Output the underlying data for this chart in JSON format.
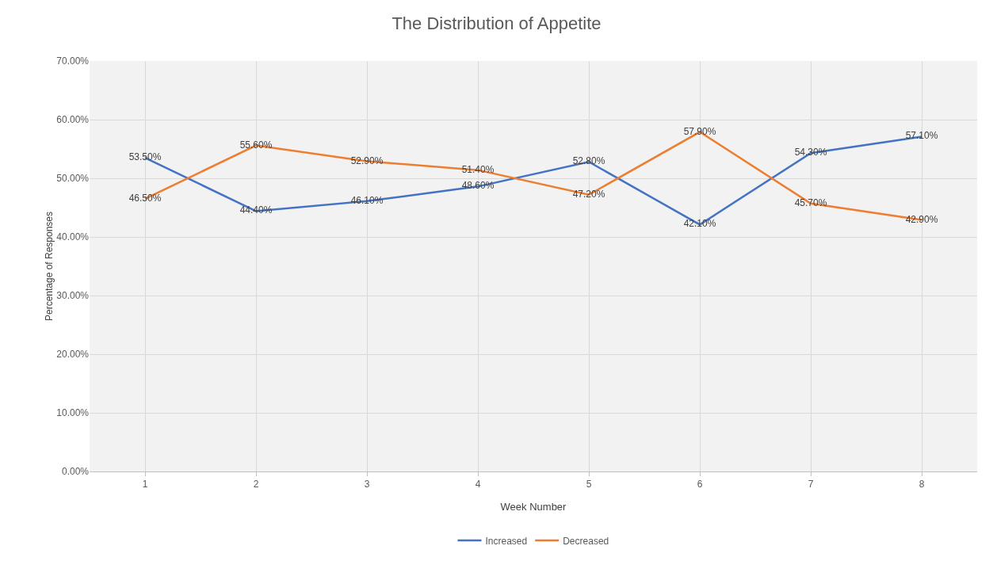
{
  "chart_data": {
    "type": "line",
    "title": "The Distribution of Appetite",
    "xlabel": "Week Number",
    "ylabel": "Percentage of Responses",
    "categories": [
      "1",
      "2",
      "3",
      "4",
      "5",
      "6",
      "7",
      "8"
    ],
    "series": [
      {
        "name": "Increased",
        "color": "#4472c4",
        "values": [
          53.5,
          44.4,
          46.1,
          48.6,
          52.8,
          42.1,
          54.3,
          57.1
        ],
        "value_labels": [
          "53.50%",
          "44.40%",
          "46.10%",
          "48.60%",
          "52.80%",
          "42.10%",
          "54.30%",
          "57.10%"
        ]
      },
      {
        "name": "Decreased",
        "color": "#ed7d31",
        "values": [
          46.5,
          55.6,
          52.9,
          51.4,
          47.2,
          57.9,
          45.7,
          42.9
        ],
        "value_labels": [
          "46.50%",
          "55.60%",
          "52.90%",
          "51.40%",
          "47.20%",
          "57.90%",
          "45.70%",
          "42.90%"
        ]
      }
    ],
    "ylim": [
      0,
      70
    ],
    "yticks": [
      {
        "value": 0,
        "label": "0.00%"
      },
      {
        "value": 10,
        "label": "10.00%"
      },
      {
        "value": 20,
        "label": "20.00%"
      },
      {
        "value": 30,
        "label": "30.00%"
      },
      {
        "value": 40,
        "label": "40.00%"
      },
      {
        "value": 50,
        "label": "50.00%"
      },
      {
        "value": 60,
        "label": "60.00%"
      },
      {
        "value": 70,
        "label": "70.00%"
      }
    ],
    "grid": true,
    "legend": "bottom",
    "marker": "none",
    "line_style": "solid"
  }
}
